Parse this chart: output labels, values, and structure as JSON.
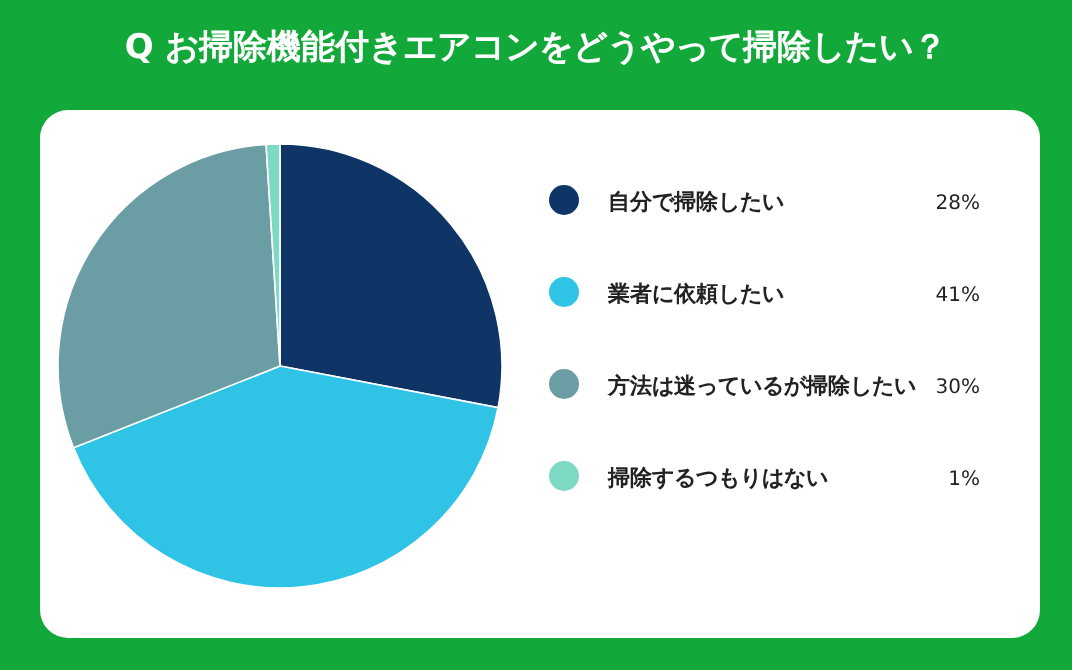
{
  "chart_data": {
    "type": "pie",
    "title": "Q お掃除機能付きエアコンをどうやって掃除したい？",
    "categories": [
      "自分で掃除したい",
      "業者に依頼したい",
      "方法は迷っているが掃除したい",
      "掃除するつもりはない"
    ],
    "values": [
      28,
      41,
      30,
      1
    ],
    "value_labels": [
      "28%",
      "41%",
      "30%",
      "1%"
    ],
    "colors": [
      "#0e3566",
      "#2fc3e6",
      "#6a9ea4",
      "#7dd8c4"
    ],
    "legend": "right"
  }
}
